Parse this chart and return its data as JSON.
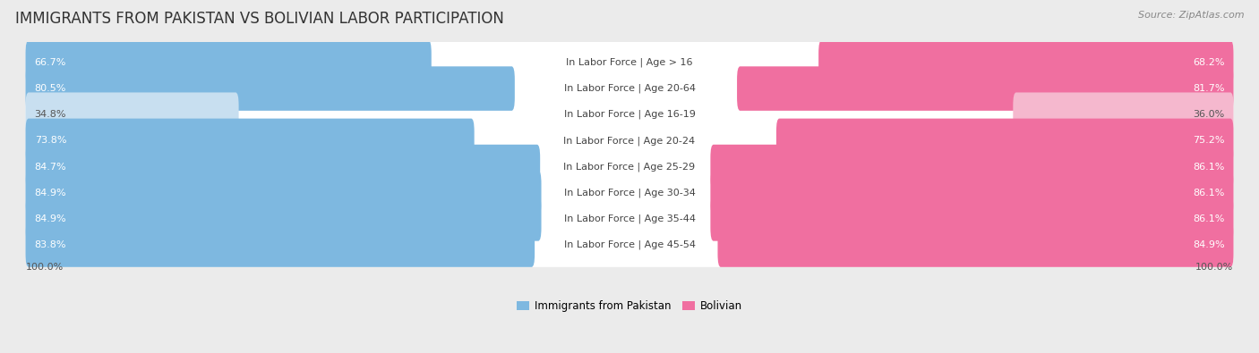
{
  "title": "IMMIGRANTS FROM PAKISTAN VS BOLIVIAN LABOR PARTICIPATION",
  "source": "Source: ZipAtlas.com",
  "categories": [
    "In Labor Force | Age > 16",
    "In Labor Force | Age 20-64",
    "In Labor Force | Age 16-19",
    "In Labor Force | Age 20-24",
    "In Labor Force | Age 25-29",
    "In Labor Force | Age 30-34",
    "In Labor Force | Age 35-44",
    "In Labor Force | Age 45-54"
  ],
  "pakistan_values": [
    66.7,
    80.5,
    34.8,
    73.8,
    84.7,
    84.9,
    84.9,
    83.8
  ],
  "bolivian_values": [
    68.2,
    81.7,
    36.0,
    75.2,
    86.1,
    86.1,
    86.1,
    84.9
  ],
  "pakistan_color": "#7eb8e0",
  "pakistan_color_light": "#c8dff0",
  "bolivian_color": "#f06fa0",
  "bolivian_color_light": "#f5b8ce",
  "row_bg_color": "#e8e8e8",
  "bar_bg_color": "#ffffff",
  "label_bg_color": "#f5f5f5",
  "background_color": "#ebebeb",
  "bar_height": 0.7,
  "max_value": 100.0,
  "title_fontsize": 12,
  "label_fontsize": 8,
  "value_fontsize": 8,
  "legend_fontsize": 8.5,
  "source_fontsize": 8
}
